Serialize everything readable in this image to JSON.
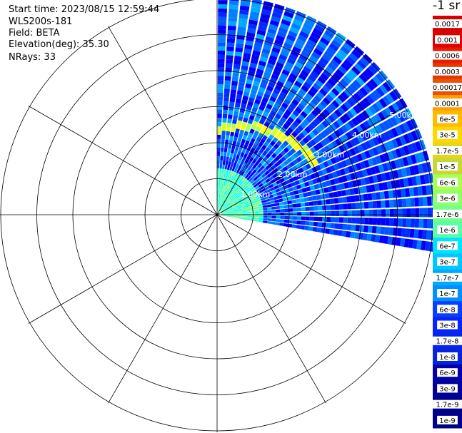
{
  "info": {
    "start_time": "Start time: 2023/08/15 12:59:44",
    "instrument": "WLS200s-181",
    "field": "Field: BETA",
    "elevation": "Elevation(deg): 35.30",
    "nrays": "NRays: 33"
  },
  "colorbar": {
    "unit_label": "-1 sr",
    "labels": [
      "0.0017",
      "0.001",
      "0.0006",
      "0.0003",
      "0.00017",
      "0.0001",
      "6e-5",
      "3e-5",
      "1.7e-5",
      "1e-5",
      "6e-6",
      "3e-6",
      "1.7e-6",
      "1e-6",
      "6e-7",
      "3e-7",
      "1.7e-7",
      "1e-7",
      "6e-8",
      "3e-8",
      "1.7e-8",
      "1e-8",
      "6e-9",
      "3e-9",
      "1.7e-9",
      "1e-9"
    ],
    "colors": [
      "#e00000",
      "#f00000",
      "#ff2a00",
      "#ff5500",
      "#ff7f00",
      "#ffaa00",
      "#ffd400",
      "#ffff00",
      "#d4ff2a",
      "#aaff55",
      "#7fff7f",
      "#55ffaa",
      "#2affd4",
      "#00ffff",
      "#00d4ff",
      "#00aaff",
      "#007fff",
      "#0055ff",
      "#002aff",
      "#0000ff",
      "#0000e6",
      "#0000cc",
      "#0000b3",
      "#000099",
      "#000080"
    ],
    "bands": [
      {
        "from": 0,
        "to": 4,
        "color": "#c00000"
      },
      {
        "from": 5,
        "to": 9,
        "color": "#ff8c00"
      },
      {
        "from": 10,
        "to": 13,
        "color": "#ffff00"
      },
      {
        "from": 14,
        "to": 17,
        "color": "#00ffff"
      },
      {
        "from": 18,
        "to": 21,
        "color": "#1464ff"
      },
      {
        "from": 22,
        "to": 25,
        "color": "#0000a0"
      }
    ]
  },
  "chart_data": {
    "type": "heatmap",
    "projection": "polar-ppi",
    "range_unit": "km",
    "range_ring_labels": [
      "1.00km",
      "2.00km",
      "3.00km",
      "4.00km",
      "5.00km"
    ],
    "max_range_km": 6,
    "radial_lines_every_deg": 30,
    "azimuth_coverage_deg": [
      0,
      100
    ],
    "nrays": 33,
    "features": {
      "aerosol_layer_range_km": [
        2.5,
        3.3
      ],
      "aerosol_layer_color": "yellow-green",
      "background_color": "blue",
      "near_field_color": "cyan"
    }
  }
}
